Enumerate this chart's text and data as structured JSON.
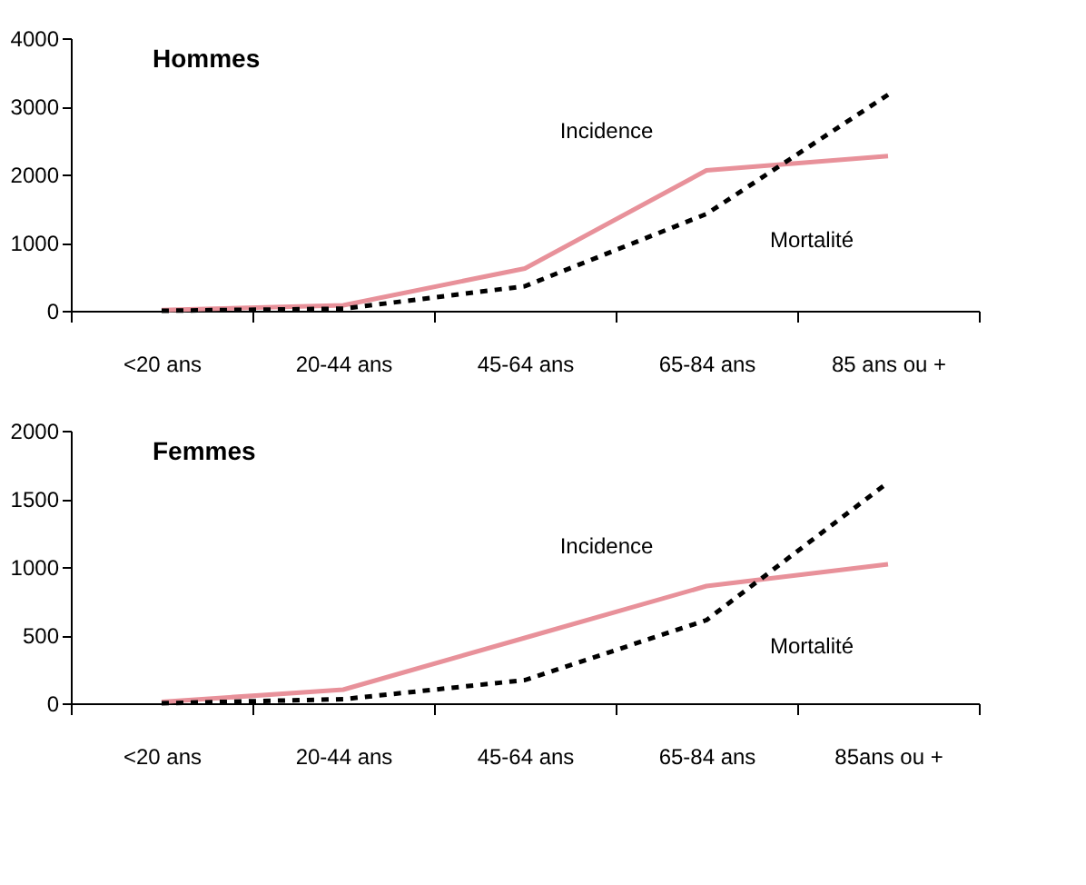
{
  "chart_data": [
    {
      "type": "line",
      "title": "Hommes",
      "categories": [
        "<20 ans",
        "20-44 ans",
        "45-64 ans",
        "65-84 ans",
        "85 ans ou +"
      ],
      "series": [
        {
          "name": "Incidence",
          "color": "#e8919a",
          "line_style": "solid",
          "values": [
            10,
            80,
            620,
            2060,
            2270
          ]
        },
        {
          "name": "Mortalité",
          "color": "#000000",
          "line_style": "dashed",
          "values": [
            0,
            30,
            360,
            1420,
            3170
          ]
        }
      ],
      "ylim": [
        0,
        4000
      ],
      "yticks": [
        0,
        1000,
        2000,
        3000,
        4000
      ],
      "grid": false,
      "marker": "none"
    },
    {
      "type": "line",
      "title": "Femmes",
      "categories": [
        "<20 ans",
        "20-44 ans",
        "45-64 ans",
        "65-84 ans",
        "85ans ou +"
      ],
      "series": [
        {
          "name": "Incidence",
          "color": "#e8919a",
          "line_style": "solid",
          "values": [
            10,
            100,
            480,
            860,
            1020
          ]
        },
        {
          "name": "Mortalité",
          "color": "#000000",
          "line_style": "dashed",
          "values": [
            0,
            30,
            170,
            610,
            1620
          ]
        }
      ],
      "ylim": [
        0,
        2000
      ],
      "yticks": [
        0,
        500,
        1000,
        1500,
        2000
      ],
      "grid": false,
      "marker": "none"
    }
  ]
}
